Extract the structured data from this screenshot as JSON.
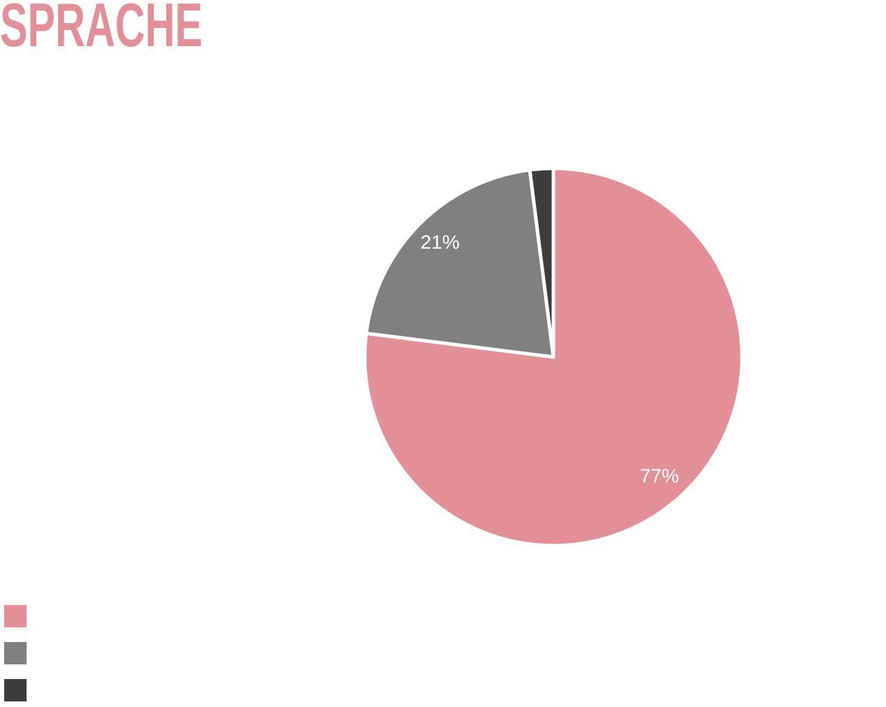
{
  "chart_data": {
    "type": "pie",
    "title": "SPRACHE",
    "title_color": "#e28f97",
    "values": [
      77,
      21,
      2
    ],
    "value_labels": [
      "77%",
      "21%",
      null
    ],
    "colors": [
      "#e28f97",
      "#7f807f",
      "#3c3d3b"
    ]
  }
}
